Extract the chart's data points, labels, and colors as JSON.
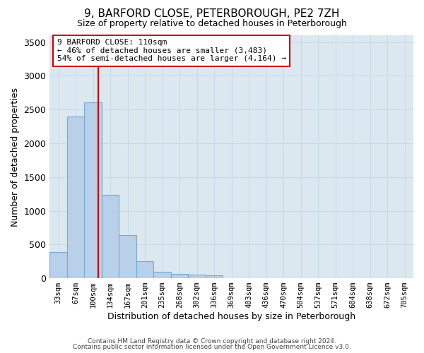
{
  "title": "9, BARFORD CLOSE, PETERBOROUGH, PE2 7ZH",
  "subtitle": "Size of property relative to detached houses in Peterborough",
  "xlabel": "Distribution of detached houses by size in Peterborough",
  "ylabel": "Number of detached properties",
  "categories": [
    "33sqm",
    "67sqm",
    "100sqm",
    "134sqm",
    "167sqm",
    "201sqm",
    "235sqm",
    "268sqm",
    "302sqm",
    "336sqm",
    "369sqm",
    "403sqm",
    "436sqm",
    "470sqm",
    "504sqm",
    "537sqm",
    "571sqm",
    "604sqm",
    "638sqm",
    "672sqm",
    "705sqm"
  ],
  "values": [
    390,
    2400,
    2610,
    1240,
    640,
    255,
    100,
    65,
    55,
    40,
    0,
    0,
    0,
    0,
    0,
    0,
    0,
    0,
    0,
    0,
    0
  ],
  "bar_color": "#b8d0e8",
  "bar_edge_color": "#7aaace",
  "vline_color": "#cc0000",
  "annotation_text": "9 BARFORD CLOSE: 110sqm\n← 46% of detached houses are smaller (3,483)\n54% of semi-detached houses are larger (4,164) →",
  "annotation_box_facecolor": "white",
  "annotation_box_edgecolor": "#cc0000",
  "ylim": [
    0,
    3600
  ],
  "yticks": [
    0,
    500,
    1000,
    1500,
    2000,
    2500,
    3000,
    3500
  ],
  "grid_color": "#c8d8ea",
  "background_color": "#dce8f0",
  "footer_line1": "Contains HM Land Registry data © Crown copyright and database right 2024.",
  "footer_line2": "Contains public sector information licensed under the Open Government Licence v3.0."
}
